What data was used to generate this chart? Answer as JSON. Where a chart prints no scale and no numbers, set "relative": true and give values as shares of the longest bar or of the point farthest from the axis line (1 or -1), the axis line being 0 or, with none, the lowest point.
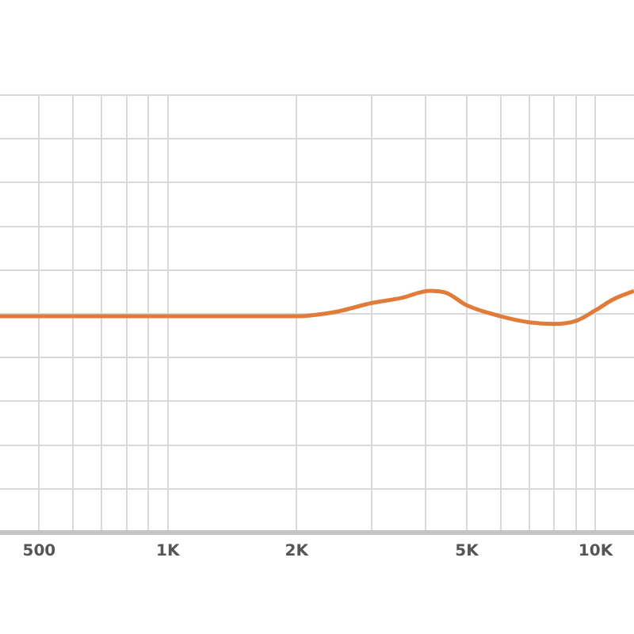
{
  "chart_data": {
    "type": "line",
    "relative": true,
    "log": "x",
    "grid": true,
    "legend": false,
    "marker": "none",
    "line_style": "solid",
    "xlim": [
      405,
      12300
    ],
    "xticks": [
      500,
      {
        "value": 600,
        "label": null
      },
      {
        "value": 700,
        "label": null
      },
      {
        "value": 800,
        "label": null
      },
      {
        "value": 900,
        "label": null
      },
      {
        "value": 1000,
        "label": "1K"
      },
      {
        "value": 2000,
        "label": "2K"
      },
      {
        "value": 3000,
        "label": null
      },
      {
        "value": 4000,
        "label": null
      },
      {
        "value": 5000,
        "label": "5K"
      },
      {
        "value": 6000,
        "label": null
      },
      {
        "value": 7000,
        "label": null
      },
      {
        "value": 8000,
        "label": null
      },
      {
        "value": 9000,
        "label": null
      },
      {
        "value": 10000,
        "label": "10K"
      }
    ],
    "x": [
      405,
      700,
      1000,
      1500,
      2000,
      2200,
      2500,
      3000,
      3500,
      4100,
      4500,
      5000,
      6000,
      7000,
      8000,
      9000,
      10000,
      11000,
      12300
    ],
    "series": [
      {
        "color": "#e07b39",
        "values": [
          0.895,
          0.895,
          0.895,
          0.895,
          0.895,
          0.9,
          0.915,
          0.95,
          0.97,
          1.0,
          0.99,
          0.94,
          0.895,
          0.87,
          0.863,
          0.876,
          0.92,
          0.965,
          1.0
        ]
      }
    ]
  }
}
